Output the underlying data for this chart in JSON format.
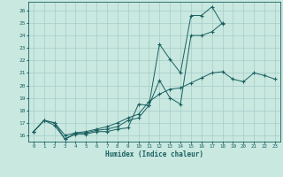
{
  "xlabel": "Humidex (Indice chaleur)",
  "ylabel": "",
  "background_color": "#c8e8e0",
  "grid_color": "#a8ccc8",
  "line_color": "#1a6060",
  "xlim": [
    -0.5,
    23.5
  ],
  "ylim": [
    15.5,
    26.7
  ],
  "xticks": [
    0,
    1,
    2,
    3,
    4,
    5,
    6,
    7,
    8,
    9,
    10,
    11,
    12,
    13,
    14,
    15,
    16,
    17,
    18,
    19,
    20,
    21,
    22,
    23
  ],
  "yticks": [
    16,
    17,
    18,
    19,
    20,
    21,
    22,
    23,
    24,
    25,
    26
  ],
  "line1_x": [
    0,
    1,
    2,
    3,
    4,
    5,
    6,
    7,
    8,
    9,
    10,
    11,
    12,
    13,
    14,
    15,
    16,
    17,
    18
  ],
  "line1_y": [
    16.3,
    17.2,
    16.8,
    15.7,
    16.1,
    16.1,
    16.3,
    16.3,
    16.5,
    16.6,
    18.5,
    18.4,
    20.4,
    19.0,
    18.5,
    24.0,
    24.0,
    24.3,
    25.0
  ],
  "line2_x": [
    0,
    1,
    2,
    3,
    4,
    5,
    6,
    7,
    8,
    9,
    10,
    11,
    12,
    13,
    14,
    15,
    16,
    17,
    18
  ],
  "line2_y": [
    16.3,
    17.2,
    17.0,
    15.7,
    16.2,
    16.2,
    16.4,
    16.5,
    16.7,
    17.2,
    17.4,
    18.4,
    23.3,
    22.1,
    21.0,
    25.6,
    25.6,
    26.3,
    24.9
  ],
  "line3_x": [
    0,
    1,
    2,
    3,
    4,
    5,
    6,
    7,
    8,
    9,
    10,
    11,
    12,
    13,
    14,
    15,
    16,
    17,
    18,
    19,
    20,
    21,
    22,
    23
  ],
  "line3_y": [
    16.3,
    17.2,
    17.0,
    16.0,
    16.2,
    16.3,
    16.5,
    16.7,
    17.0,
    17.4,
    17.7,
    18.7,
    19.3,
    19.7,
    19.8,
    20.2,
    20.6,
    21.0,
    21.1,
    20.5,
    20.3,
    21.0,
    20.8,
    20.5
  ]
}
